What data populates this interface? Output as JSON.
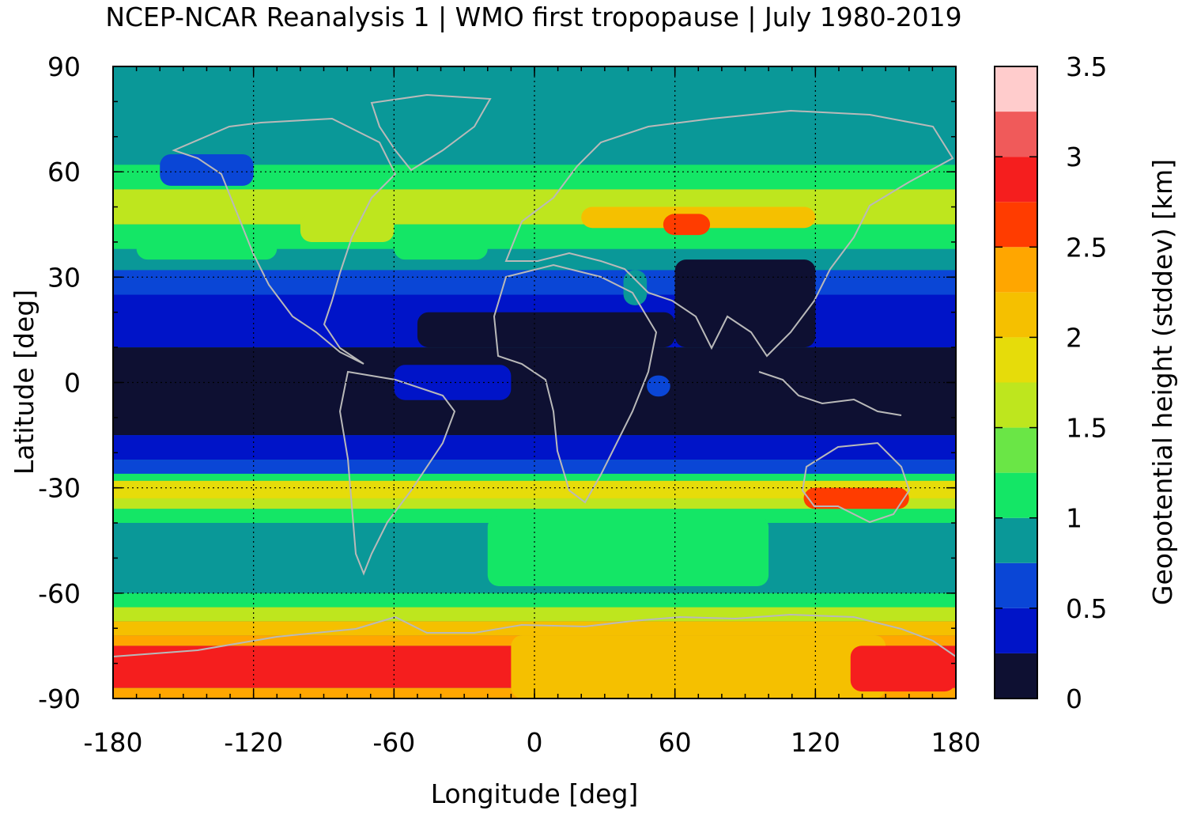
{
  "title": "NCEP-NCAR Reanalysis 1 | WMO first tropopause | July 1980-2019",
  "chart_data": {
    "type": "heatmap",
    "title": "NCEP-NCAR Reanalysis 1 | WMO first tropopause | July 1980-2019",
    "xlabel": "Longitude [deg]",
    "ylabel": "Latitude [deg]",
    "colorbar_label": "Geopotential height (stddev) [km]",
    "xlim": [
      -180,
      180
    ],
    "ylim": [
      -90,
      90
    ],
    "xticks": [
      "-180",
      "-120",
      "-60",
      "0",
      "60",
      "120",
      "180"
    ],
    "yticks": [
      "90",
      "60",
      "30",
      "0",
      "-30",
      "-60",
      "-90"
    ],
    "grid": true,
    "colorbar": {
      "range": [
        0,
        3.5
      ],
      "ticks": [
        "0",
        "0.5",
        "1",
        "1.5",
        "2",
        "2.5",
        "3",
        "3.5"
      ],
      "levels": [
        {
          "from": 0.0,
          "to": 0.25,
          "color": "#0e1032"
        },
        {
          "from": 0.25,
          "to": 0.5,
          "color": "#0014c8"
        },
        {
          "from": 0.5,
          "to": 0.75,
          "color": "#0a46d6"
        },
        {
          "from": 0.75,
          "to": 1.0,
          "color": "#0a9898"
        },
        {
          "from": 1.0,
          "to": 1.25,
          "color": "#14e666"
        },
        {
          "from": 1.25,
          "to": 1.5,
          "color": "#6ae646"
        },
        {
          "from": 1.5,
          "to": 1.75,
          "color": "#bee61e"
        },
        {
          "from": 1.75,
          "to": 2.0,
          "color": "#e6dc0a"
        },
        {
          "from": 2.0,
          "to": 2.25,
          "color": "#f5c000"
        },
        {
          "from": 2.25,
          "to": 2.5,
          "color": "#ffa600"
        },
        {
          "from": 2.5,
          "to": 2.75,
          "color": "#ff3c00"
        },
        {
          "from": 2.75,
          "to": 3.0,
          "color": "#f51e1e"
        },
        {
          "from": 3.0,
          "to": 3.25,
          "color": "#f05a5a"
        },
        {
          "from": 3.25,
          "to": 3.5,
          "color": "#ffcccc"
        }
      ]
    },
    "zonal_bands": [
      {
        "lat_from": 90,
        "lat_to": 62,
        "value": 0.9
      },
      {
        "lat_from": 62,
        "lat_to": 55,
        "value": 1.1
      },
      {
        "lat_from": 55,
        "lat_to": 45,
        "value": 1.6
      },
      {
        "lat_from": 45,
        "lat_to": 38,
        "value": 1.1
      },
      {
        "lat_from": 38,
        "lat_to": 32,
        "value": 0.9
      },
      {
        "lat_from": 32,
        "lat_to": 25,
        "value": 0.6
      },
      {
        "lat_from": 25,
        "lat_to": 10,
        "value": 0.4
      },
      {
        "lat_from": 10,
        "lat_to": -15,
        "value": 0.1
      },
      {
        "lat_from": -15,
        "lat_to": -22,
        "value": 0.4
      },
      {
        "lat_from": -22,
        "lat_to": -26,
        "value": 0.6
      },
      {
        "lat_from": -26,
        "lat_to": -28,
        "value": 1.1
      },
      {
        "lat_from": -28,
        "lat_to": -33,
        "value": 1.9
      },
      {
        "lat_from": -33,
        "lat_to": -36,
        "value": 1.6
      },
      {
        "lat_from": -36,
        "lat_to": -40,
        "value": 1.1
      },
      {
        "lat_from": -40,
        "lat_to": -60,
        "value": 0.9
      },
      {
        "lat_from": -60,
        "lat_to": -64,
        "value": 1.2
      },
      {
        "lat_from": -64,
        "lat_to": -68,
        "value": 1.7
      },
      {
        "lat_from": -68,
        "lat_to": -72,
        "value": 2.1
      },
      {
        "lat_from": -72,
        "lat_to": -75,
        "value": 2.4
      },
      {
        "lat_from": -75,
        "lat_to": -87,
        "value": 2.85
      },
      {
        "lat_from": -87,
        "lat_to": -90,
        "value": 2.3
      }
    ],
    "features": [
      {
        "lon": [
          -160,
          -120
        ],
        "lat": [
          65,
          56
        ],
        "value": 0.6
      },
      {
        "lon": [
          -170,
          -110
        ],
        "lat": [
          45,
          35
        ],
        "value": 1.1
      },
      {
        "lon": [
          -100,
          -60
        ],
        "lat": [
          48,
          40
        ],
        "value": 1.6
      },
      {
        "lon": [
          -60,
          -20
        ],
        "lat": [
          45,
          35
        ],
        "value": 1.1
      },
      {
        "lon": [
          20,
          120
        ],
        "lat": [
          50,
          44
        ],
        "value": 2.1
      },
      {
        "lon": [
          55,
          75
        ],
        "lat": [
          48,
          42
        ],
        "value": 2.6
      },
      {
        "lon": [
          -50,
          60
        ],
        "lat": [
          20,
          10
        ],
        "value": 0.1
      },
      {
        "lon": [
          60,
          120
        ],
        "lat": [
          35,
          10
        ],
        "value": 0.1
      },
      {
        "lon": [
          38,
          48
        ],
        "lat": [
          32,
          22
        ],
        "value": 0.9
      },
      {
        "lon": [
          -60,
          -10
        ],
        "lat": [
          5,
          -5
        ],
        "value": 0.4
      },
      {
        "lon": [
          48,
          58
        ],
        "lat": [
          2,
          -4
        ],
        "value": 0.6
      },
      {
        "lon": [
          115,
          160
        ],
        "lat": [
          -30,
          -36
        ],
        "value": 2.6
      },
      {
        "lon": [
          100,
          180
        ],
        "lat": [
          -40,
          -60
        ],
        "value": 0.9
      },
      {
        "lon": [
          -180,
          -100
        ],
        "lat": [
          -40,
          -60
        ],
        "value": 0.9
      },
      {
        "lon": [
          -20,
          100
        ],
        "lat": [
          -38,
          -58
        ],
        "value": 1.1
      },
      {
        "lon": [
          -10,
          150
        ],
        "lat": [
          -72,
          -90
        ],
        "value": 2.2
      },
      {
        "lon": [
          135,
          180
        ],
        "lat": [
          -75,
          -88
        ],
        "value": 2.85
      }
    ]
  }
}
